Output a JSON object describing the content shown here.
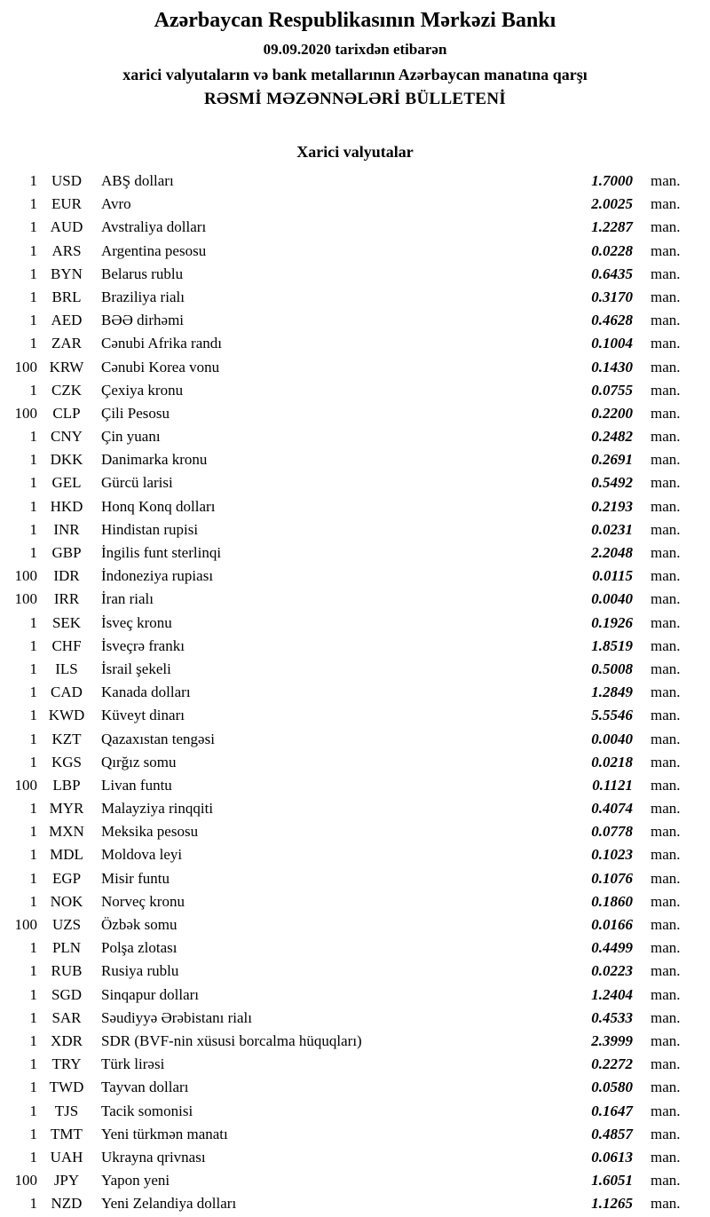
{
  "header": {
    "title": "Azərbaycan Respublikasının Mərkəzi Bankı",
    "date_line": "09.09.2020 tarixdən etibarən",
    "subtitle": "xarici valyutaların və bank metallarının Azərbaycan manatına qarşı",
    "bulletin_line": "RƏSMİ MƏZƏNNƏLƏRİ BÜLLETENİ"
  },
  "section": {
    "title": "Xarici valyutalar"
  },
  "unit_label": "man.",
  "colors": {
    "text": "#000000",
    "background": "#ffffff"
  },
  "rates": [
    {
      "qty": "1",
      "code": "USD",
      "name": "ABŞ dolları",
      "rate": "1.7000"
    },
    {
      "qty": "1",
      "code": "EUR",
      "name": "Avro",
      "rate": "2.0025"
    },
    {
      "qty": "1",
      "code": "AUD",
      "name": "Avstraliya dolları",
      "rate": "1.2287"
    },
    {
      "qty": "1",
      "code": "ARS",
      "name": "Argentina pesosu",
      "rate": "0.0228"
    },
    {
      "qty": "1",
      "code": "BYN",
      "name": "Belarus rublu",
      "rate": "0.6435"
    },
    {
      "qty": "1",
      "code": "BRL",
      "name": "Braziliya rialı",
      "rate": "0.3170"
    },
    {
      "qty": "1",
      "code": "AED",
      "name": "BƏƏ dirhəmi",
      "rate": "0.4628"
    },
    {
      "qty": "1",
      "code": "ZAR",
      "name": "Cənubi Afrika randı",
      "rate": "0.1004"
    },
    {
      "qty": "100",
      "code": "KRW",
      "name": "Cənubi Korea vonu",
      "rate": "0.1430"
    },
    {
      "qty": "1",
      "code": "CZK",
      "name": "Çexiya kronu",
      "rate": "0.0755"
    },
    {
      "qty": "100",
      "code": "CLP",
      "name": "Çili Pesosu",
      "rate": "0.2200"
    },
    {
      "qty": "1",
      "code": "CNY",
      "name": "Çin yuanı",
      "rate": "0.2482"
    },
    {
      "qty": "1",
      "code": "DKK",
      "name": "Danimarka kronu",
      "rate": "0.2691"
    },
    {
      "qty": "1",
      "code": "GEL",
      "name": "Gürcü larisi",
      "rate": "0.5492"
    },
    {
      "qty": "1",
      "code": "HKD",
      "name": "Honq Konq dolları",
      "rate": "0.2193"
    },
    {
      "qty": "1",
      "code": "INR",
      "name": "Hindistan rupisi",
      "rate": "0.0231"
    },
    {
      "qty": "1",
      "code": "GBP",
      "name": "İngilis funt sterlinqi",
      "rate": "2.2048"
    },
    {
      "qty": "100",
      "code": "IDR",
      "name": "İndoneziya rupiası",
      "rate": "0.0115"
    },
    {
      "qty": "100",
      "code": "IRR",
      "name": "İran rialı",
      "rate": "0.0040"
    },
    {
      "qty": "1",
      "code": "SEK",
      "name": "İsveç kronu",
      "rate": "0.1926"
    },
    {
      "qty": "1",
      "code": "CHF",
      "name": "İsveçrə frankı",
      "rate": "1.8519"
    },
    {
      "qty": "1",
      "code": "ILS",
      "name": "İsrail şekeli",
      "rate": "0.5008"
    },
    {
      "qty": "1",
      "code": "CAD",
      "name": "Kanada dolları",
      "rate": "1.2849"
    },
    {
      "qty": "1",
      "code": "KWD",
      "name": "Küveyt dinarı",
      "rate": "5.5546"
    },
    {
      "qty": "1",
      "code": "KZT",
      "name": "Qazaxıstan tengəsi",
      "rate": "0.0040"
    },
    {
      "qty": "1",
      "code": "KGS",
      "name": "Qırğız somu",
      "rate": "0.0218"
    },
    {
      "qty": "100",
      "code": "LBP",
      "name": "Livan funtu",
      "rate": "0.1121"
    },
    {
      "qty": "1",
      "code": "MYR",
      "name": "Malayziya rinqqiti",
      "rate": "0.4074"
    },
    {
      "qty": "1",
      "code": "MXN",
      "name": "Meksika pesosu",
      "rate": "0.0778"
    },
    {
      "qty": "1",
      "code": "MDL",
      "name": "Moldova leyi",
      "rate": "0.1023"
    },
    {
      "qty": "1",
      "code": "EGP",
      "name": "Misir funtu",
      "rate": "0.1076"
    },
    {
      "qty": "1",
      "code": "NOK",
      "name": "Norveç kronu",
      "rate": "0.1860"
    },
    {
      "qty": "100",
      "code": "UZS",
      "name": "Özbək somu",
      "rate": "0.0166"
    },
    {
      "qty": "1",
      "code": "PLN",
      "name": "Polşa zlotası",
      "rate": "0.4499"
    },
    {
      "qty": "1",
      "code": "RUB",
      "name": "Rusiya rublu",
      "rate": "0.0223"
    },
    {
      "qty": "1",
      "code": "SGD",
      "name": "Sinqapur dolları",
      "rate": "1.2404"
    },
    {
      "qty": "1",
      "code": "SAR",
      "name": "Səudiyyə Ərəbistanı rialı",
      "rate": "0.4533"
    },
    {
      "qty": "1",
      "code": "XDR",
      "name": "SDR (BVF-nin xüsusi borcalma hüquqları)",
      "rate": "2.3999"
    },
    {
      "qty": "1",
      "code": "TRY",
      "name": "Türk lirəsi",
      "rate": "0.2272"
    },
    {
      "qty": "1",
      "code": "TWD",
      "name": "Tayvan dolları",
      "rate": "0.0580"
    },
    {
      "qty": "1",
      "code": "TJS",
      "name": "Tacik somonisi",
      "rate": "0.1647"
    },
    {
      "qty": "1",
      "code": "TMT",
      "name": "Yeni türkmən manatı",
      "rate": "0.4857"
    },
    {
      "qty": "1",
      "code": "UAH",
      "name": "Ukrayna qrivnası",
      "rate": "0.0613"
    },
    {
      "qty": "100",
      "code": "JPY",
      "name": "Yapon yeni",
      "rate": "1.6051"
    },
    {
      "qty": "1",
      "code": "NZD",
      "name": "Yeni Zelandiya dolları",
      "rate": "1.1265"
    }
  ]
}
